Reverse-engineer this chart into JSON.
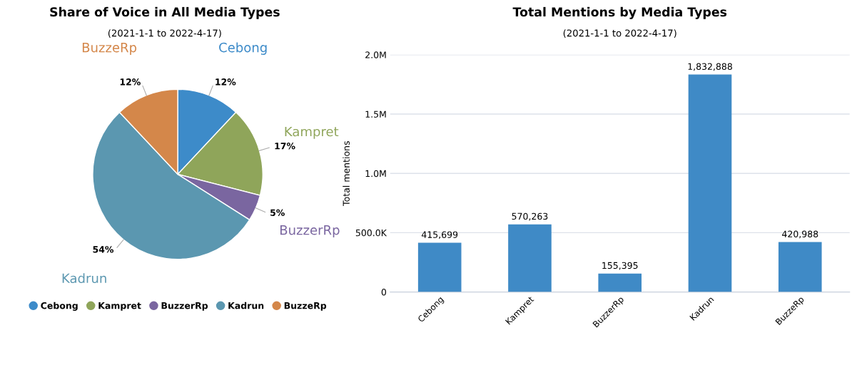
{
  "chart_data": [
    {
      "type": "pie",
      "title": "Share of Voice in All Media Types",
      "subtitle": "(2021-1-1 to 2022-4-17)",
      "categories": [
        "Cebong",
        "Kampret",
        "BuzzerRp",
        "Kadrun",
        "BuzzeRp"
      ],
      "values": [
        12,
        17,
        5,
        54,
        12
      ],
      "value_labels": [
        "12%",
        "17%",
        "5%",
        "54%",
        "12%"
      ],
      "colors": [
        "#3d8bc9",
        "#8fa55a",
        "#7a66a0",
        "#5b97b0",
        "#d4874a"
      ],
      "legend": "bottom"
    },
    {
      "type": "bar",
      "title": "Total Mentions by Media Types",
      "subtitle": "(2021-1-1 to 2022-4-17)",
      "ylabel": "Total mentions",
      "categories": [
        "Cebong",
        "Kampret",
        "BuzzerRp",
        "Kadrun",
        "BuzzeRp"
      ],
      "series": [
        {
          "color": "#3f8ac6",
          "values": [
            415699,
            570263,
            155395,
            1832888,
            420988
          ],
          "value_labels": [
            "415,699",
            "570,263",
            "155,395",
            "1,832,888",
            "420,988"
          ]
        }
      ],
      "ylim": [
        0,
        2000000
      ],
      "yticks": [
        0,
        {
          "value": 500000,
          "label": "500.0K"
        },
        {
          "value": 1000000,
          "label": "1.0M"
        },
        {
          "value": 1500000,
          "label": "1.5M"
        },
        {
          "value": 2000000,
          "label": "2.0M"
        }
      ],
      "grid": "y",
      "legend": false
    }
  ]
}
